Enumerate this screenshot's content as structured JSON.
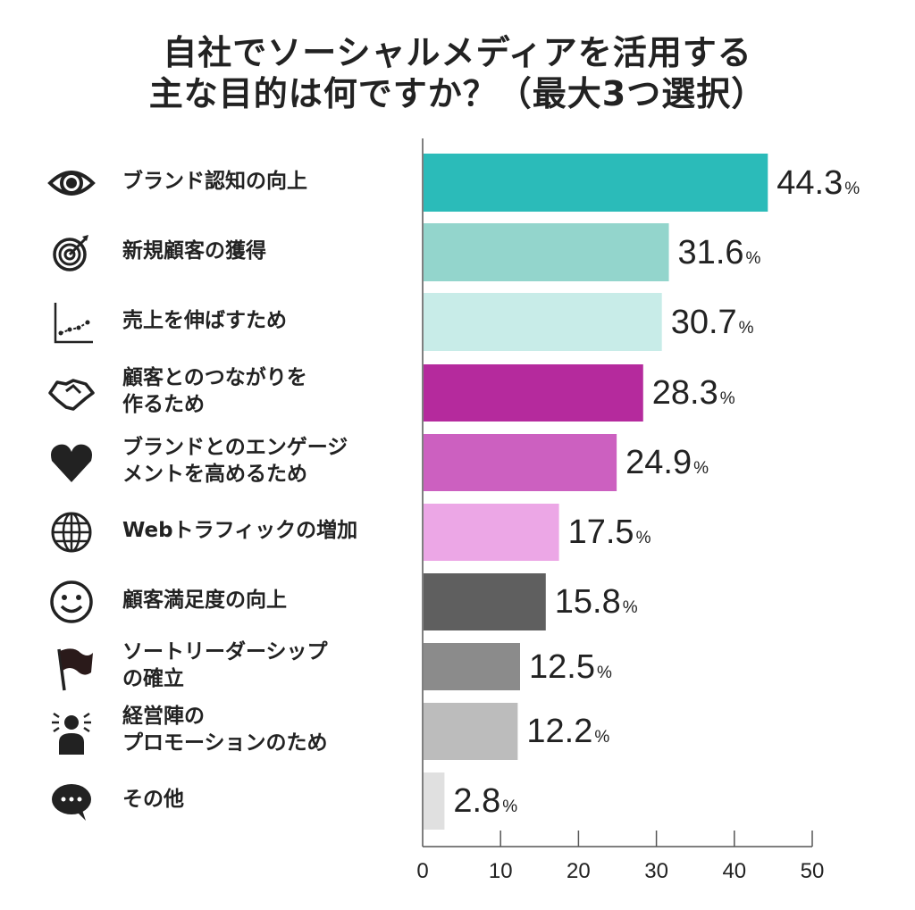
{
  "title": [
    "自社でソーシャルメディアを活用する",
    "主な目的は何ですか？（最大3つ選択）"
  ],
  "chart_data": {
    "type": "bar",
    "orientation": "horizontal",
    "title": "自社でソーシャルメディアを活用する 主な目的は何ですか？（最大3つ選択）",
    "categories": [
      [
        "ブランド認知の向上"
      ],
      [
        "新規顧客の獲得"
      ],
      [
        "売上を伸ばすため"
      ],
      [
        "顧客とのつながりを",
        "作るため"
      ],
      [
        "ブランドとのエンゲージ",
        "メントを高めるため"
      ],
      [
        "Webトラフィックの増加"
      ],
      [
        "顧客満足度の向上"
      ],
      [
        "ソートリーダーシップ",
        "の確立"
      ],
      [
        "経営陣の",
        "プロモーションのため"
      ],
      [
        "その他"
      ]
    ],
    "values": [
      44.3,
      31.6,
      30.7,
      28.3,
      24.9,
      17.5,
      15.8,
      12.5,
      12.2,
      2.8
    ],
    "value_labels": [
      "44.3",
      "31.6",
      "30.7",
      "28.3",
      "24.9",
      "17.5",
      "15.8",
      "12.5",
      "12.2",
      "2.8"
    ],
    "unit": "%",
    "colors": [
      "#2bbbb9",
      "#93d5cc",
      "#c8ece8",
      "#b52a9d",
      "#cc60c0",
      "#eca7e6",
      "#5f5f5f",
      "#8b8b8b",
      "#bcbcbc",
      "#e0e0e0"
    ],
    "icons": [
      "eye-icon",
      "target-icon",
      "line-chart-icon",
      "handshake-icon",
      "heart-icon",
      "globe-icon",
      "smiley-icon",
      "flag-icon",
      "person-spotlight-icon",
      "speech-bubble-icon"
    ],
    "xlim": [
      0,
      50
    ],
    "xticks": [
      "0",
      "10",
      "20",
      "30",
      "40",
      "50"
    ],
    "grid": false,
    "legend": "none"
  }
}
